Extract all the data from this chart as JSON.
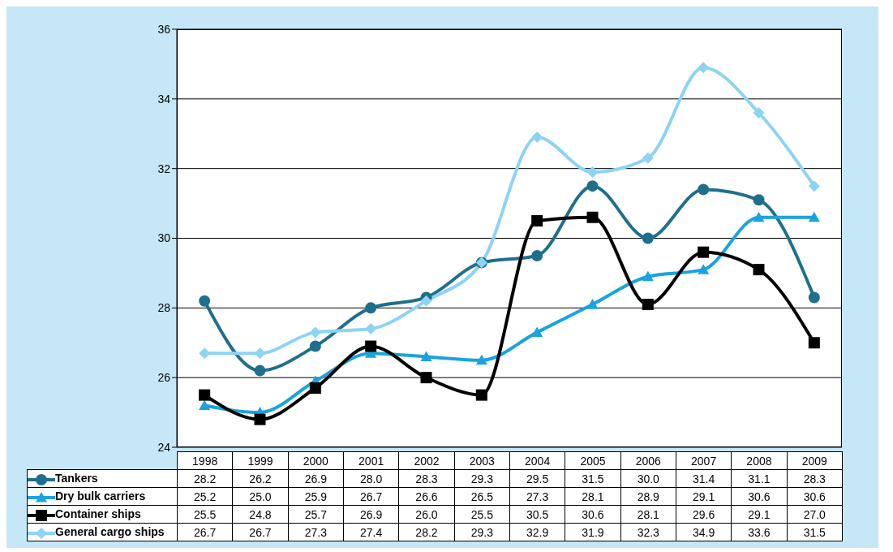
{
  "chart_data": {
    "type": "line",
    "categories": [
      "1998",
      "1999",
      "2000",
      "2001",
      "2002",
      "2003",
      "2004",
      "2005",
      "2006",
      "2007",
      "2008",
      "2009"
    ],
    "series": [
      {
        "name": "Tankers",
        "color": "#1f6f8c",
        "marker": "circle",
        "values": [
          28.2,
          26.2,
          26.9,
          28.0,
          28.3,
          29.3,
          29.5,
          31.5,
          30.0,
          31.4,
          31.1,
          28.3
        ],
        "value_labels": [
          "28.2",
          "26.2",
          "26.9",
          "28.0",
          "28.3",
          "29.3",
          "29.5",
          "31.5",
          "30.0",
          "31.4",
          "31.1",
          "28.3"
        ]
      },
      {
        "name": "Dry bulk carriers",
        "color": "#1aa3e0",
        "marker": "triangle",
        "values": [
          25.2,
          25.0,
          25.9,
          26.7,
          26.6,
          26.5,
          27.3,
          28.1,
          28.9,
          29.1,
          30.6,
          30.6
        ],
        "value_labels": [
          "25.2",
          "25.0",
          "25.9",
          "26.7",
          "26.6",
          "26.5",
          "27.3",
          "28.1",
          "28.9",
          "29.1",
          "30.6",
          "30.6"
        ]
      },
      {
        "name": "Container ships",
        "color": "#000000",
        "marker": "square",
        "values": [
          25.5,
          24.8,
          25.7,
          26.9,
          26.0,
          25.5,
          30.5,
          30.6,
          28.1,
          29.6,
          29.1,
          27.0
        ],
        "value_labels": [
          "25.5",
          "24.8",
          "25.7",
          "26.9",
          "26.0",
          "25.5",
          "30.5",
          "30.6",
          "28.1",
          "29.6",
          "29.1",
          "27.0"
        ]
      },
      {
        "name": "General cargo ships",
        "color": "#8dd3f3",
        "marker": "diamond",
        "values": [
          26.7,
          26.7,
          27.3,
          27.4,
          28.2,
          29.3,
          32.9,
          31.9,
          32.3,
          34.9,
          33.6,
          31.5
        ],
        "value_labels": [
          "26.7",
          "26.7",
          "27.3",
          "27.4",
          "28.2",
          "29.3",
          "32.9",
          "31.9",
          "32.3",
          "34.9",
          "33.6",
          "31.5"
        ]
      }
    ],
    "ylim": [
      24,
      36
    ],
    "yticks": [
      24,
      26,
      28,
      30,
      32,
      34,
      36
    ],
    "grid": "y",
    "legend": "bottom"
  }
}
